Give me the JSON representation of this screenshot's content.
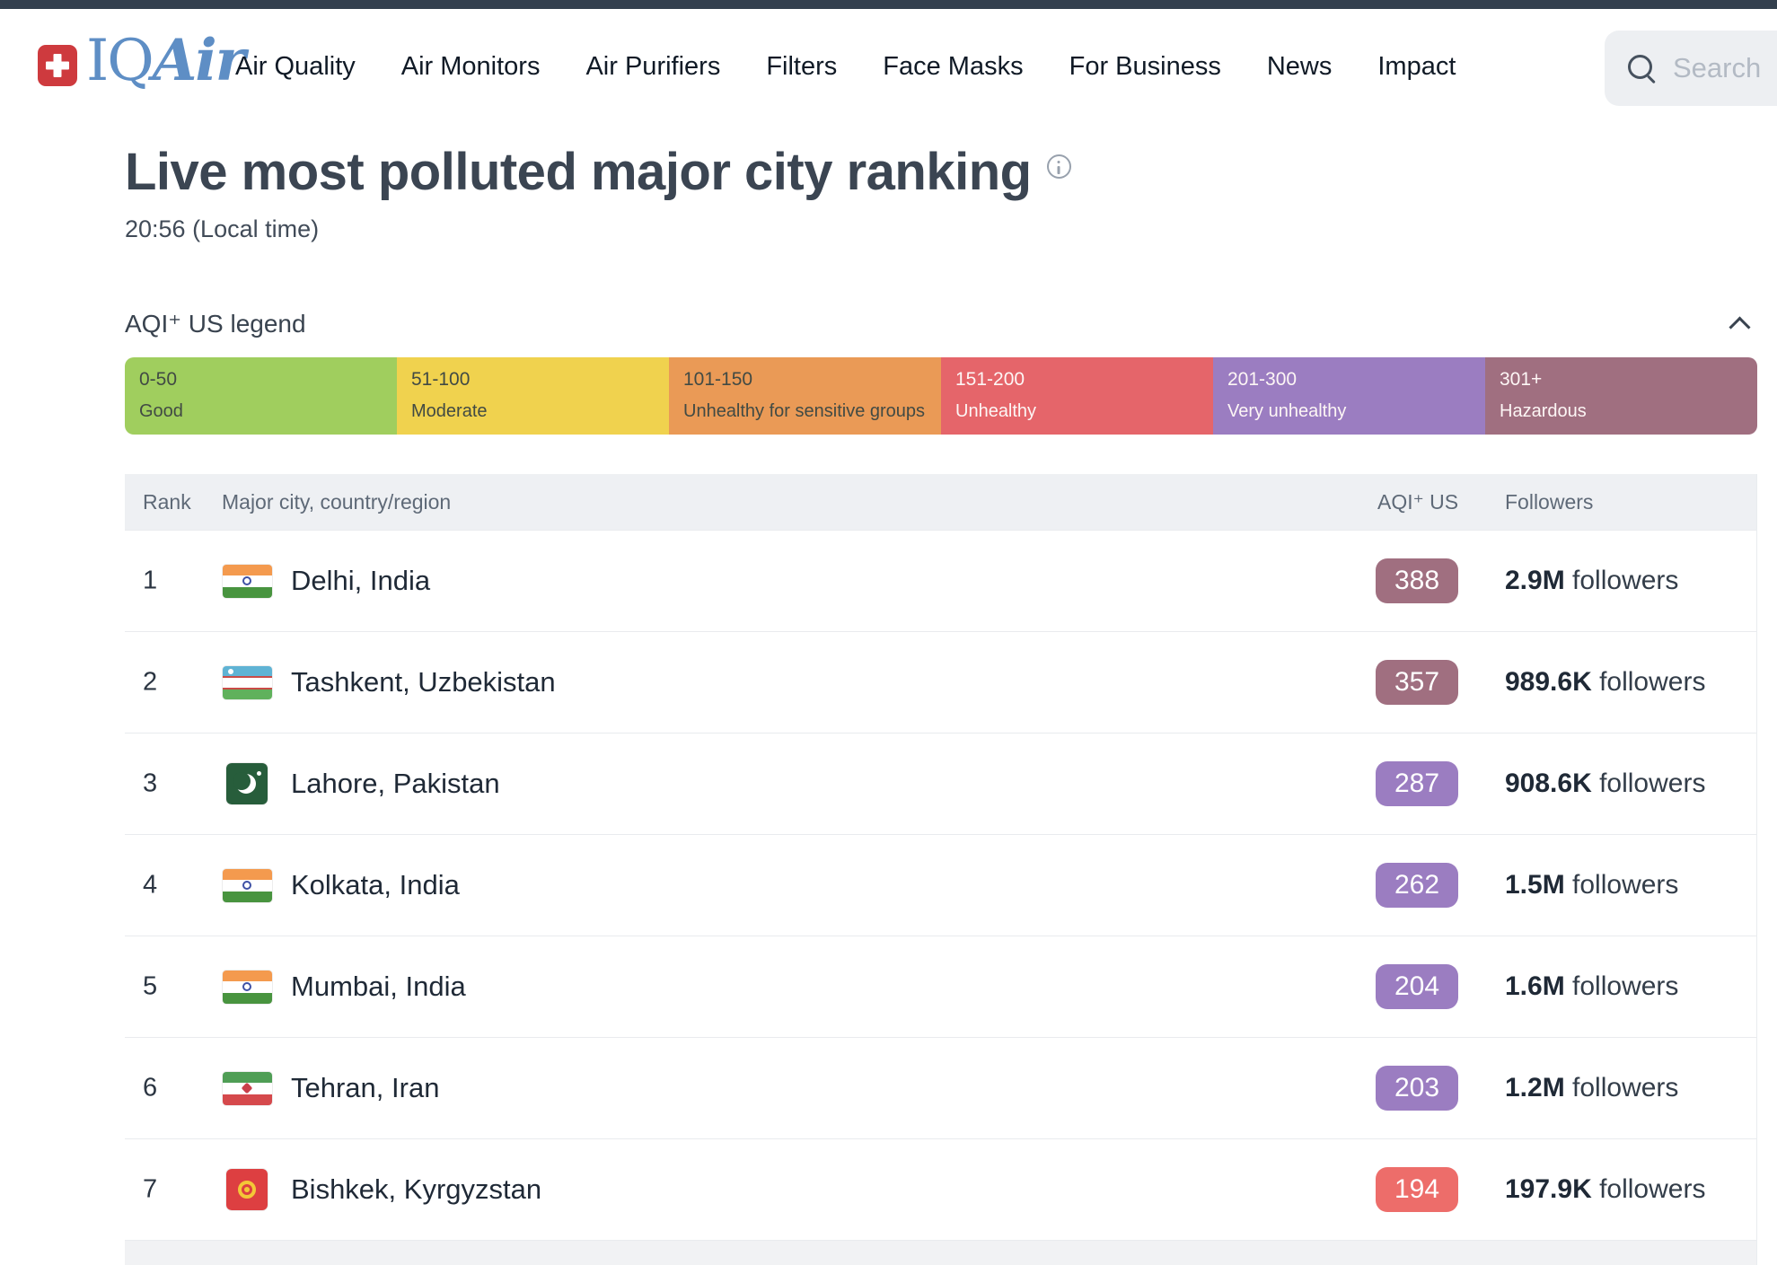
{
  "topnav": {
    "brand": {
      "iq": "IQ",
      "air": "Air"
    },
    "items": [
      {
        "label": "Air Quality"
      },
      {
        "label": "Air Monitors"
      },
      {
        "label": "Air Purifiers"
      },
      {
        "label": "Filters"
      },
      {
        "label": "Face Masks"
      },
      {
        "label": "For Business"
      },
      {
        "label": "News"
      },
      {
        "label": "Impact"
      }
    ],
    "search": {
      "placeholder": "Search"
    }
  },
  "page": {
    "title": "Live most polluted major city ranking",
    "timestamp": "20:56 (Local time)"
  },
  "legend": {
    "title": "AQI⁺ US legend",
    "bands": [
      {
        "range": "0-50",
        "label": "Good",
        "color": "#a0ce5e",
        "text": "dark"
      },
      {
        "range": "51-100",
        "label": "Moderate",
        "color": "#f0d24e",
        "text": "dark"
      },
      {
        "range": "101-150",
        "label": "Unhealthy for sensitive groups",
        "color": "#ea9a56",
        "text": "dark"
      },
      {
        "range": "151-200",
        "label": "Unhealthy",
        "color": "#e5656a",
        "text": "light"
      },
      {
        "range": "201-300",
        "label": "Very unhealthy",
        "color": "#9b7dc1",
        "text": "light"
      },
      {
        "range": "301+",
        "label": "Hazardous",
        "color": "#a06f80",
        "text": "light"
      }
    ]
  },
  "table": {
    "headers": {
      "rank": "Rank",
      "city": "Major city, country/region",
      "aqi": "AQI⁺ US",
      "followers": "Followers"
    },
    "rows": [
      {
        "rank": "1",
        "city": "Delhi, India",
        "flag": "india",
        "aqi": "388",
        "aqi_color": "#a06f80",
        "followers_count": "2.9M",
        "followers_suffix": " followers"
      },
      {
        "rank": "2",
        "city": "Tashkent, Uzbekistan",
        "flag": "uzbekistan",
        "aqi": "357",
        "aqi_color": "#a06f80",
        "followers_count": "989.6K",
        "followers_suffix": " followers"
      },
      {
        "rank": "3",
        "city": "Lahore, Pakistan",
        "flag": "pakistan",
        "aqi": "287",
        "aqi_color": "#9b7dc1",
        "followers_count": "908.6K",
        "followers_suffix": " followers"
      },
      {
        "rank": "4",
        "city": "Kolkata, India",
        "flag": "india",
        "aqi": "262",
        "aqi_color": "#9b7dc1",
        "followers_count": "1.5M",
        "followers_suffix": " followers"
      },
      {
        "rank": "5",
        "city": "Mumbai, India",
        "flag": "india",
        "aqi": "204",
        "aqi_color": "#9b7dc1",
        "followers_count": "1.6M",
        "followers_suffix": " followers"
      },
      {
        "rank": "6",
        "city": "Tehran, Iran",
        "flag": "iran",
        "aqi": "203",
        "aqi_color": "#9b7dc1",
        "followers_count": "1.2M",
        "followers_suffix": " followers"
      },
      {
        "rank": "7",
        "city": "Bishkek, Kyrgyzstan",
        "flag": "kyrgyzstan",
        "aqi": "194",
        "aqi_color": "#ed6d6a",
        "followers_count": "197.9K",
        "followers_suffix": " followers"
      }
    ]
  },
  "flags": {
    "india": {
      "type": "stripes",
      "stripes": [
        [
          "#f49a4e",
          12
        ],
        [
          "#ffffff",
          13
        ],
        [
          "#48943f",
          12
        ]
      ],
      "emblem": "chakra"
    },
    "uzbekistan": {
      "type": "stripes",
      "stripes": [
        [
          "#5fb3d4",
          11
        ],
        [
          "#c94b47",
          2
        ],
        [
          "#ffffff",
          11
        ],
        [
          "#c94b47",
          2
        ],
        [
          "#60b15c",
          11
        ]
      ],
      "emblem": "uzb"
    },
    "pakistan": {
      "type": "square",
      "color": "#275d3b",
      "emblem": "crescent"
    },
    "iran": {
      "type": "stripes",
      "stripes": [
        [
          "#4f9e55",
          12
        ],
        [
          "#ffffff",
          13
        ],
        [
          "#d5494c",
          12
        ]
      ],
      "emblem": "iran"
    },
    "kyrgyzstan": {
      "type": "square",
      "color": "#dd3f41",
      "emblem": "sun"
    }
  }
}
